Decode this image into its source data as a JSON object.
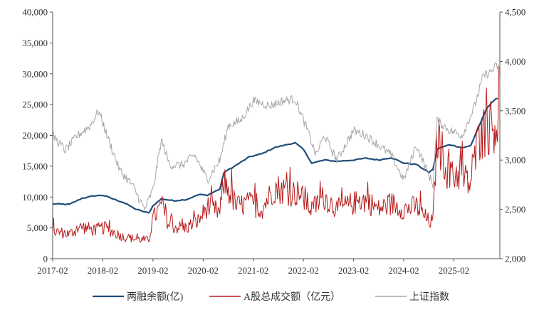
{
  "chart_data": {
    "type": "line",
    "title": "",
    "xlabel": "",
    "ylabel_left": "",
    "ylabel_right": "",
    "x_ticks": [
      "2017-02",
      "2018-02",
      "2019-02",
      "2020-02",
      "2021-02",
      "2022-02",
      "2023-02",
      "2024-02",
      "2025-02"
    ],
    "x_range": [
      "2017-02",
      "2025-12"
    ],
    "y_left": {
      "min": 0,
      "max": 40000,
      "ticks": [
        "0",
        "5,000",
        "10,000",
        "15,000",
        "20,000",
        "25,000",
        "30,000",
        "35,000",
        "40,000"
      ]
    },
    "y_right": {
      "min": 2000,
      "max": 4500,
      "ticks": [
        "2,000",
        "2,500",
        "3,000",
        "3,500",
        "4,000",
        "4,500"
      ]
    },
    "grid": false,
    "legend_position": "bottom",
    "series": [
      {
        "name": "两融余额(亿)",
        "axis": "left",
        "color": "#1f4e79",
        "style": "smooth",
        "points": [
          [
            "2017-02",
            8900
          ],
          [
            "2017-06",
            8800
          ],
          [
            "2017-09",
            9800
          ],
          [
            "2017-12",
            10200
          ],
          [
            "2018-02",
            10300
          ],
          [
            "2018-04",
            9800
          ],
          [
            "2018-07",
            9100
          ],
          [
            "2018-10",
            8000
          ],
          [
            "2019-01",
            7400
          ],
          [
            "2019-02",
            8600
          ],
          [
            "2019-04",
            9700
          ],
          [
            "2019-07",
            9400
          ],
          [
            "2019-10",
            9600
          ],
          [
            "2020-01",
            10400
          ],
          [
            "2020-03",
            10300
          ],
          [
            "2020-06",
            11300
          ],
          [
            "2020-07",
            14000
          ],
          [
            "2020-10",
            15200
          ],
          [
            "2021-01",
            16500
          ],
          [
            "2021-04",
            17000
          ],
          [
            "2021-07",
            18000
          ],
          [
            "2021-10",
            18500
          ],
          [
            "2021-12",
            18800
          ],
          [
            "2022-02",
            17700
          ],
          [
            "2022-04",
            15500
          ],
          [
            "2022-07",
            16000
          ],
          [
            "2022-10",
            15800
          ],
          [
            "2023-02",
            16000
          ],
          [
            "2023-05",
            16300
          ],
          [
            "2023-08",
            16000
          ],
          [
            "2023-11",
            16400
          ],
          [
            "2024-02",
            15500
          ],
          [
            "2024-05",
            15300
          ],
          [
            "2024-08",
            14000
          ],
          [
            "2024-09",
            14500
          ],
          [
            "2024-10",
            17800
          ],
          [
            "2025-01",
            18500
          ],
          [
            "2025-04",
            18000
          ],
          [
            "2025-06",
            18300
          ],
          [
            "2025-08",
            21500
          ],
          [
            "2025-10",
            24500
          ],
          [
            "2025-12",
            26000
          ]
        ]
      },
      {
        "name": "A股总成交额（亿元）",
        "axis": "left",
        "color": "#b71c1c",
        "style": "volatile",
        "points": [
          [
            "2017-02",
            4500
          ],
          [
            "2017-06",
            4000
          ],
          [
            "2017-09",
            5200
          ],
          [
            "2017-12",
            4600
          ],
          [
            "2018-02",
            5000
          ],
          [
            "2018-04",
            4500
          ],
          [
            "2018-07",
            3500
          ],
          [
            "2018-10",
            3200
          ],
          [
            "2019-01",
            3000
          ],
          [
            "2019-02",
            6500
          ],
          [
            "2019-04",
            8500
          ],
          [
            "2019-06",
            5200
          ],
          [
            "2019-10",
            5000
          ],
          [
            "2020-01",
            6200
          ],
          [
            "2020-03",
            8500
          ],
          [
            "2020-06",
            7500
          ],
          [
            "2020-07",
            12500
          ],
          [
            "2020-10",
            8500
          ],
          [
            "2021-01",
            9000
          ],
          [
            "2021-04",
            8000
          ],
          [
            "2021-07",
            11500
          ],
          [
            "2021-10",
            11000
          ],
          [
            "2022-01",
            10500
          ],
          [
            "2022-04",
            8000
          ],
          [
            "2022-07",
            10000
          ],
          [
            "2022-10",
            8000
          ],
          [
            "2023-02",
            9000
          ],
          [
            "2023-05",
            9500
          ],
          [
            "2023-08",
            8000
          ],
          [
            "2023-11",
            9000
          ],
          [
            "2024-02",
            8000
          ],
          [
            "2024-05",
            8500
          ],
          [
            "2024-08",
            6000
          ],
          [
            "2024-09",
            6000
          ],
          [
            "2024-10",
            20000
          ],
          [
            "2025-01",
            13000
          ],
          [
            "2025-03",
            14000
          ],
          [
            "2025-06",
            12000
          ],
          [
            "2025-08",
            20000
          ],
          [
            "2025-10",
            21000
          ],
          [
            "2025-12",
            22000
          ]
        ]
      },
      {
        "name": "上证指数",
        "axis": "right",
        "color": "#a6a6a6",
        "style": "noisy",
        "points": [
          [
            "2017-02",
            3250
          ],
          [
            "2017-05",
            3100
          ],
          [
            "2017-08",
            3250
          ],
          [
            "2017-11",
            3350
          ],
          [
            "2018-01",
            3500
          ],
          [
            "2018-03",
            3250
          ],
          [
            "2018-06",
            2900
          ],
          [
            "2018-09",
            2750
          ],
          [
            "2018-12",
            2500
          ],
          [
            "2019-02",
            2700
          ],
          [
            "2019-04",
            3200
          ],
          [
            "2019-06",
            2950
          ],
          [
            "2019-09",
            2950
          ],
          [
            "2019-12",
            3050
          ],
          [
            "2020-03",
            2800
          ],
          [
            "2020-06",
            3000
          ],
          [
            "2020-08",
            3350
          ],
          [
            "2020-11",
            3400
          ],
          [
            "2021-02",
            3600
          ],
          [
            "2021-06",
            3550
          ],
          [
            "2021-09",
            3600
          ],
          [
            "2021-12",
            3620
          ],
          [
            "2022-03",
            3300
          ],
          [
            "2022-05",
            3050
          ],
          [
            "2022-07",
            3250
          ],
          [
            "2022-10",
            3000
          ],
          [
            "2023-02",
            3300
          ],
          [
            "2023-05",
            3250
          ],
          [
            "2023-08",
            3150
          ],
          [
            "2023-11",
            3050
          ],
          [
            "2024-02",
            2800
          ],
          [
            "2024-05",
            3150
          ],
          [
            "2024-08",
            2850
          ],
          [
            "2024-09",
            2750
          ],
          [
            "2024-10",
            3400
          ],
          [
            "2025-01",
            3300
          ],
          [
            "2025-04",
            3250
          ],
          [
            "2025-07",
            3550
          ],
          [
            "2025-09",
            3850
          ],
          [
            "2025-11",
            3900
          ],
          [
            "2025-12",
            3950
          ]
        ]
      }
    ]
  }
}
